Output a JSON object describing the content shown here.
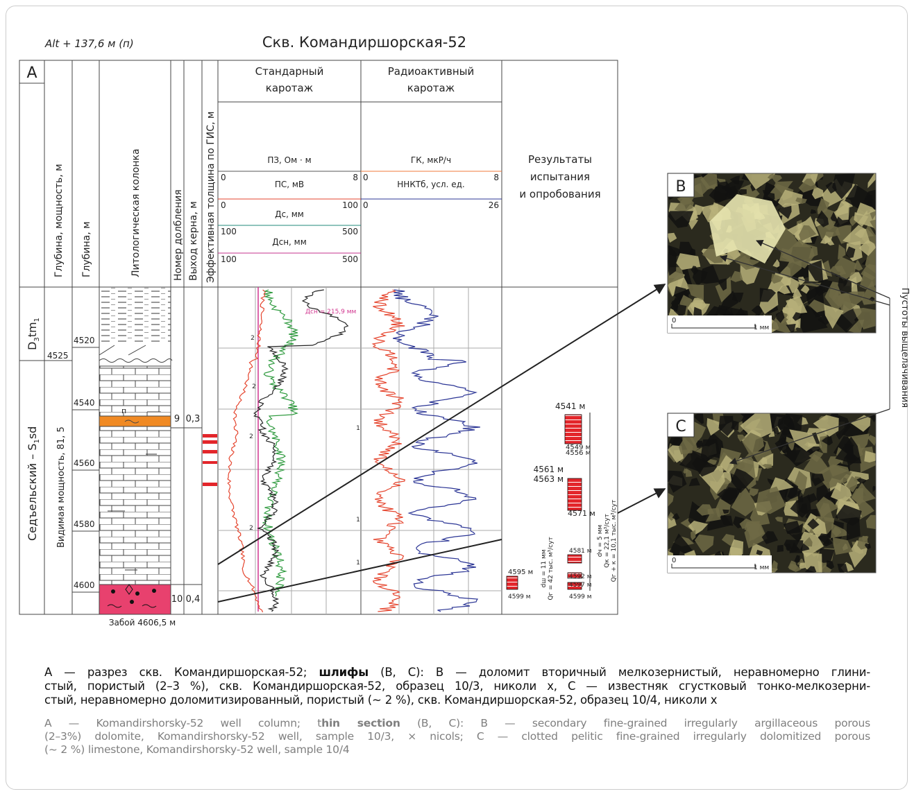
{
  "header": {
    "altitude": "Alt + 137,6 м (п)",
    "title": "Скв. Командиршорская-52"
  },
  "panels": {
    "a": "A",
    "b": "B",
    "c": "C"
  },
  "columns": [
    "Глубина, мощность, м",
    "Глубина, м",
    "Литологическая колонка",
    "Номер долбления",
    "Выход керна, м",
    "Эффективная толщина по ГИС, м"
  ],
  "logs": {
    "standard": [
      "Стандарный",
      "каротаж"
    ],
    "radio": [
      "Радиоактивный",
      "каротаж"
    ],
    "results": [
      "Результаты",
      "испытания",
      "и опробования"
    ],
    "scales": [
      {
        "name": "ПЗ, Ом · м",
        "min": "0",
        "max": "8"
      },
      {
        "name": "ПС, мВ",
        "min": "0",
        "max": "100"
      },
      {
        "name": "Дс, мм",
        "min": "100",
        "max": "500"
      },
      {
        "name": "Дсн, мм",
        "min": "100",
        "max": "500"
      },
      {
        "name": "ГК, мкР/ч",
        "min": "0",
        "max": "8"
      },
      {
        "name": "ННКТб, усл. ед.",
        "min": "0",
        "max": "26"
      }
    ],
    "bit_note": "Дсн = 215,9 мм",
    "curve_numbers": [
      "2",
      "2",
      "2",
      "2",
      "1",
      "1",
      "1"
    ]
  },
  "stratigraphy": {
    "upper": {
      "main": "D",
      "sub1": "3",
      "mid": "tm",
      "sub2": "1"
    },
    "lower": {
      "main": "Седъельский – S",
      "sub": "1",
      "tail": "sd"
    }
  },
  "thickness": {
    "top": "4525",
    "visible": "Видимая мощность, 81, 5"
  },
  "depths": [
    "4520",
    "4540",
    "4560",
    "4580",
    "4600"
  ],
  "lithology_symbol": "п",
  "cores": [
    {
      "run": "9",
      "recovery": "0,3"
    },
    {
      "run": "10",
      "recovery": "0,4"
    }
  ],
  "results": {
    "labels": [
      "4541 м",
      "4549 м",
      "4556 м",
      "4561 м",
      "4563 м",
      "4571 м",
      "4581 м",
      "4592 м",
      "4597 м",
      "4599 м",
      "4595 м",
      "4599 м"
    ],
    "right": [
      "dч = 5 мм",
      "Qк = 22,1 м³/сут",
      "Qг + к = 10,1 тыс. м³/сут"
    ],
    "left": [
      "dш = 11 мм",
      "Qг = 42 тыс. м³/сут"
    ]
  },
  "photos": {
    "scale_zero": "0",
    "scale_unit": "1 мм",
    "voids": "Пустоты выщелачивания"
  },
  "bottom_hole": "Забой 4606,5 м",
  "caption_ru": [
    [
      "А — разрез скв. Командиршорская-52; ",
      "шлифы",
      " (B, C): B — доломит вторичный мелкозернистый, неравномерно глини-"
    ],
    "стый, пористый (2–3 %), скв. Командиршорская-52, образец 10/3, николи x, C — известняк сгустковый тонко-мелкозерни-",
    "стый, неравномерно доломитизированный, пористый (~ 2 %), скв. Командиршорская-52, образец 10/4, николи x"
  ],
  "caption_en": [
    [
      "A — Komandirshorsky-52 well column; t",
      "hin section",
      " (B, C): B — secondary fine-grained irregularly argillaceous porous"
    ],
    "(2–3%) dolomite, Komandirshorsky-52 well, sample 10/3, × nicols; C — clotted pelitic fine-grained irregularly dolomitized porous",
    "(~ 2 %) limestone,  Komandirshorsky-52 well, sample 10/4"
  ]
}
